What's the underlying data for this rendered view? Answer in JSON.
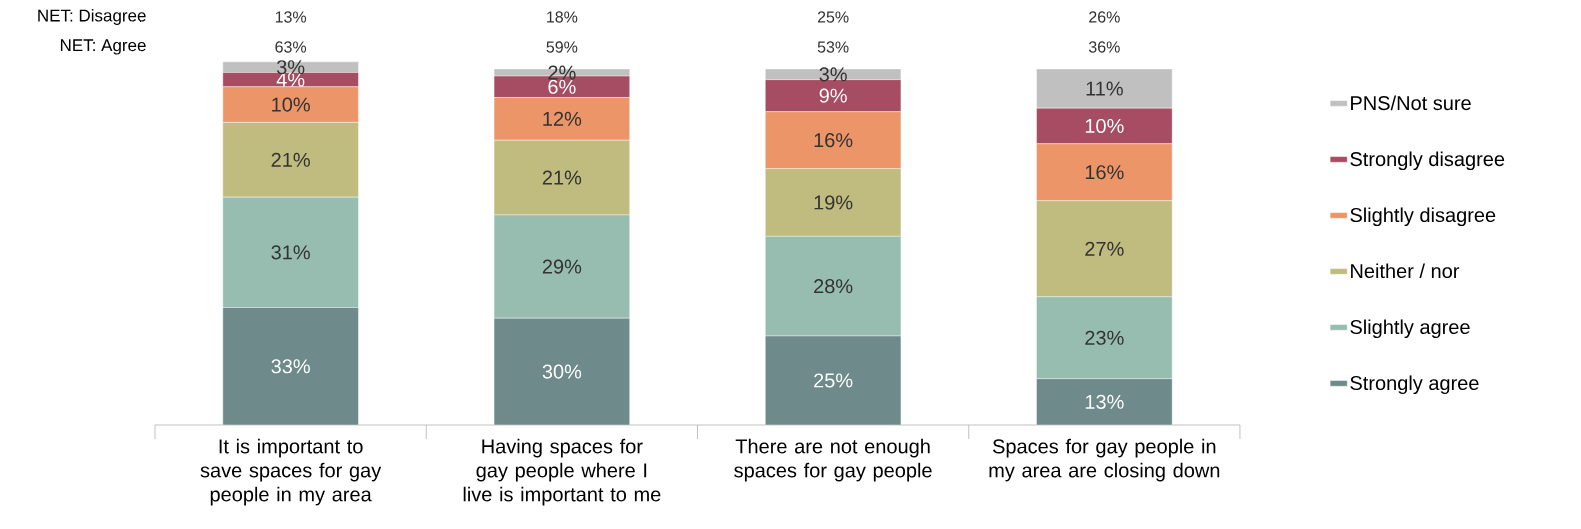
{
  "chart_data": {
    "type": "bar",
    "stacked": true,
    "legend": "right",
    "categories": [
      "It is important to save spaces for gay people in my area",
      "Having spaces for gay people where I live is important to me",
      "There are not enough spaces for gay people",
      "Spaces for gay people in my area are closing down"
    ],
    "series": [
      {
        "name": "Strongly agree",
        "color": "#6e8a8a",
        "values": [
          33,
          30,
          25,
          13
        ],
        "value_labels": [
          "33%",
          "30%",
          "25%",
          "13%"
        ]
      },
      {
        "name": "Slightly agree",
        "color": "#96bdb0",
        "values": [
          31,
          29,
          28,
          23
        ],
        "value_labels": [
          "31%",
          "29%",
          "28%",
          "23%"
        ]
      },
      {
        "name": "Neither / nor",
        "color": "#c0bb7e",
        "values": [
          21,
          21,
          19,
          27
        ],
        "value_labels": [
          "21%",
          "21%",
          "19%",
          "27%"
        ]
      },
      {
        "name": "Slightly disagree",
        "color": "#ec9569",
        "values": [
          10,
          12,
          16,
          16
        ],
        "value_labels": [
          "10%",
          "12%",
          "16%",
          "16%"
        ]
      },
      {
        "name": "Strongly disagree",
        "color": "#a64d63",
        "values": [
          4,
          6,
          9,
          10
        ],
        "value_labels": [
          "4%",
          "6%",
          "9%",
          "10%"
        ]
      },
      {
        "name": "PNS/Not sure",
        "color": "#c0c0c0",
        "values": [
          3,
          2,
          3,
          11
        ],
        "value_labels": [
          "3%",
          "2%",
          "3%",
          "11%"
        ]
      }
    ],
    "ylim": [
      0,
      102
    ],
    "annotations": [
      "NET: Disagree",
      "13%",
      "18%",
      "25%",
      "26%",
      "NET: Agree",
      "63%",
      "59%",
      "53%",
      "36%"
    ]
  }
}
